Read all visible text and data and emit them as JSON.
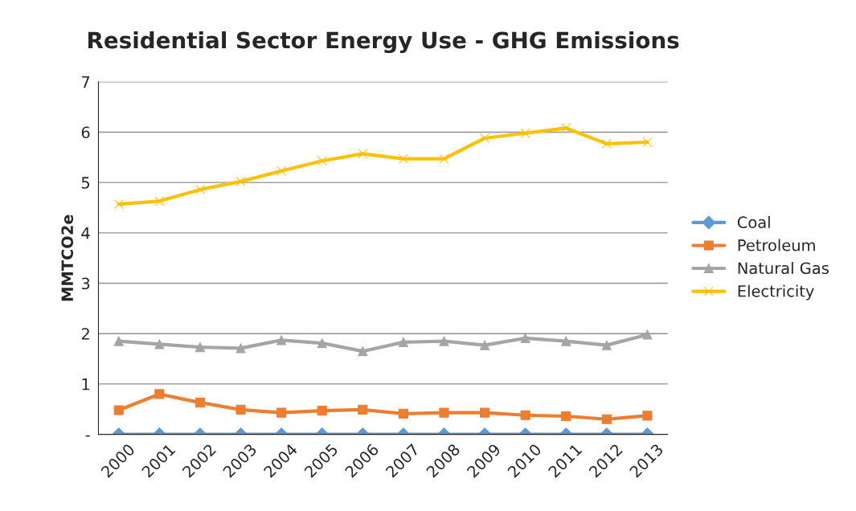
{
  "chart_data": {
    "type": "line",
    "title": "Residential Sector Energy Use - GHG Emissions",
    "ylabel": "MMTCO2e",
    "categories": [
      "2000",
      "2001",
      "2002",
      "2003",
      "2004",
      "2005",
      "2006",
      "2007",
      "2008",
      "2009",
      "2010",
      "2011",
      "2012",
      "2013"
    ],
    "series": [
      {
        "name": "Coal",
        "color": "#5b9bd5",
        "marker": "diamond",
        "values": [
          0,
          0,
          0,
          0,
          0,
          0,
          0,
          0,
          0,
          0,
          0,
          0,
          0,
          0
        ]
      },
      {
        "name": "Petroleum",
        "color": "#ed7d31",
        "marker": "square",
        "values": [
          0.48,
          0.8,
          0.63,
          0.49,
          0.43,
          0.47,
          0.49,
          0.41,
          0.43,
          0.43,
          0.38,
          0.36,
          0.3,
          0.37
        ]
      },
      {
        "name": "Natural Gas",
        "color": "#a5a5a5",
        "marker": "triangle",
        "values": [
          1.85,
          1.79,
          1.73,
          1.71,
          1.87,
          1.81,
          1.65,
          1.83,
          1.85,
          1.77,
          1.91,
          1.85,
          1.77,
          1.98
        ]
      },
      {
        "name": "Electricity",
        "color": "#ffc000",
        "marker": "cross",
        "values": [
          4.57,
          4.63,
          4.86,
          5.02,
          5.23,
          5.43,
          5.57,
          5.47,
          5.47,
          5.88,
          5.98,
          6.08,
          5.77,
          5.8
        ]
      }
    ],
    "ylim": [
      0,
      7
    ],
    "yticks": [
      {
        "value": 0,
        "label": "-"
      },
      1,
      2,
      3,
      4,
      5,
      6,
      7
    ],
    "grid": "y",
    "legend": "right"
  }
}
